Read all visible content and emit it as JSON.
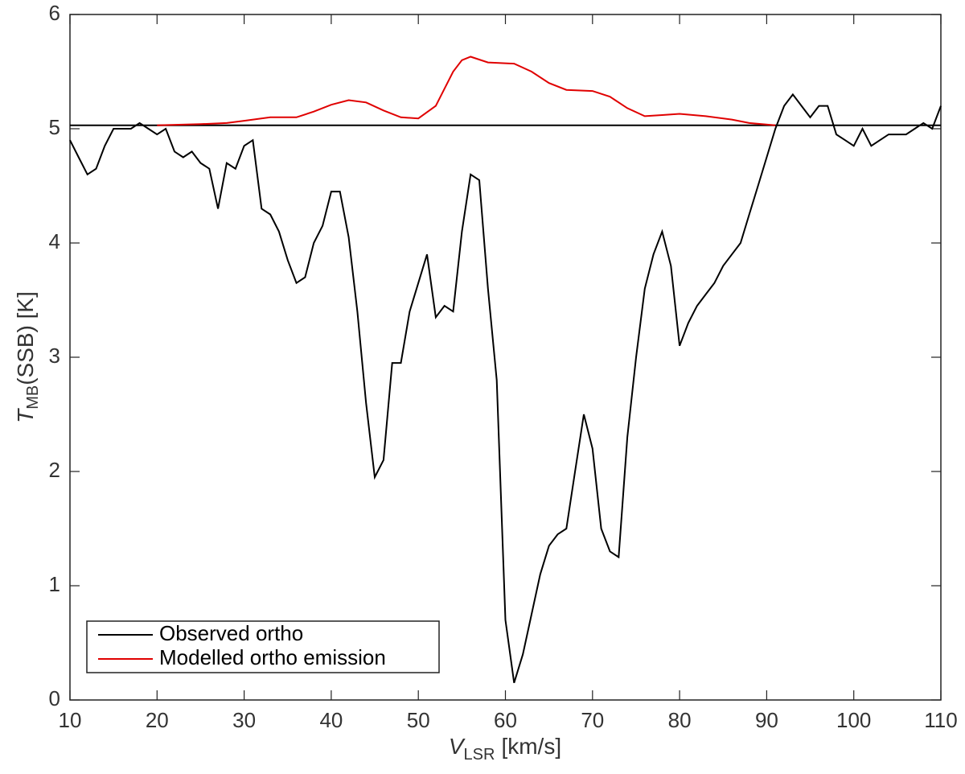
{
  "chart_data": {
    "type": "line",
    "xlabel": [
      "V",
      "LSR",
      "[km/s]"
    ],
    "ylabel": [
      "T",
      "MB",
      "(SSB) [K]"
    ],
    "xlim": [
      10,
      110
    ],
    "xticks": [
      10,
      20,
      30,
      40,
      50,
      60,
      70,
      80,
      90,
      100,
      110
    ],
    "ylim": [
      0,
      6
    ],
    "yticks": [
      0,
      1,
      2,
      3,
      4,
      5,
      6
    ],
    "reference_line": 5.03,
    "legend": "lower left",
    "series": [
      {
        "name": "Observed ortho",
        "color": "#000000",
        "x": [
          10,
          11,
          12,
          13,
          14,
          15,
          16,
          17,
          18,
          19,
          20,
          21,
          22,
          23,
          24,
          25,
          26,
          27,
          28,
          29,
          30,
          31,
          32,
          33,
          34,
          35,
          36,
          37,
          38,
          39,
          40,
          41,
          42,
          43,
          44,
          45,
          46,
          47,
          48,
          49,
          50,
          51,
          52,
          53,
          54,
          55,
          56,
          57,
          58,
          59,
          60,
          61,
          62,
          63,
          64,
          65,
          66,
          67,
          68,
          69,
          70,
          71,
          72,
          73,
          74,
          75,
          76,
          77,
          78,
          79,
          80,
          81,
          82,
          83,
          84,
          85,
          86,
          87,
          88,
          89,
          90,
          91,
          92,
          93,
          94,
          95,
          96,
          97,
          98,
          99,
          100,
          101,
          102,
          103,
          104,
          105,
          106,
          107,
          108,
          109,
          110
        ],
        "values": [
          4.9,
          4.75,
          4.6,
          4.65,
          4.85,
          5.0,
          5.0,
          5.0,
          5.05,
          5.0,
          4.95,
          5.0,
          4.8,
          4.75,
          4.8,
          4.7,
          4.65,
          4.3,
          4.7,
          4.65,
          4.85,
          4.9,
          4.3,
          4.25,
          4.1,
          3.85,
          3.65,
          3.7,
          4.0,
          4.15,
          4.45,
          4.45,
          4.05,
          3.4,
          2.6,
          1.95,
          2.1,
          2.95,
          2.95,
          3.4,
          3.65,
          3.9,
          3.35,
          3.45,
          3.4,
          4.1,
          4.6,
          4.55,
          3.6,
          2.8,
          0.7,
          0.15,
          0.4,
          0.75,
          1.1,
          1.35,
          1.45,
          1.5,
          2.0,
          2.5,
          2.2,
          1.5,
          1.3,
          1.25,
          2.3,
          3.0,
          3.6,
          3.9,
          4.1,
          3.8,
          3.1,
          3.3,
          3.45,
          3.55,
          3.65,
          3.8,
          3.9,
          4.0,
          4.25,
          4.5,
          4.75,
          5.0,
          5.2,
          5.3,
          5.2,
          5.1,
          5.2,
          5.2,
          4.95,
          4.9,
          4.85,
          5.0,
          4.85,
          4.9,
          4.95,
          4.95,
          4.95,
          5.0,
          5.05,
          5.0,
          5.2
        ]
      },
      {
        "name": "Modelled ortho emission",
        "color": "#e00000",
        "x": [
          20,
          25,
          28,
          30,
          33,
          36,
          38,
          40,
          42,
          44,
          46,
          48,
          50,
          52,
          53,
          54,
          55,
          56,
          58,
          61,
          63,
          65,
          67,
          70,
          72,
          74,
          76,
          78,
          80,
          83,
          86,
          88,
          91
        ],
        "values": [
          5.03,
          5.04,
          5.05,
          5.07,
          5.1,
          5.1,
          5.15,
          5.21,
          5.25,
          5.23,
          5.16,
          5.1,
          5.09,
          5.2,
          5.35,
          5.5,
          5.6,
          5.63,
          5.58,
          5.57,
          5.5,
          5.4,
          5.34,
          5.33,
          5.28,
          5.18,
          5.11,
          5.12,
          5.13,
          5.11,
          5.08,
          5.05,
          5.03
        ]
      }
    ]
  }
}
